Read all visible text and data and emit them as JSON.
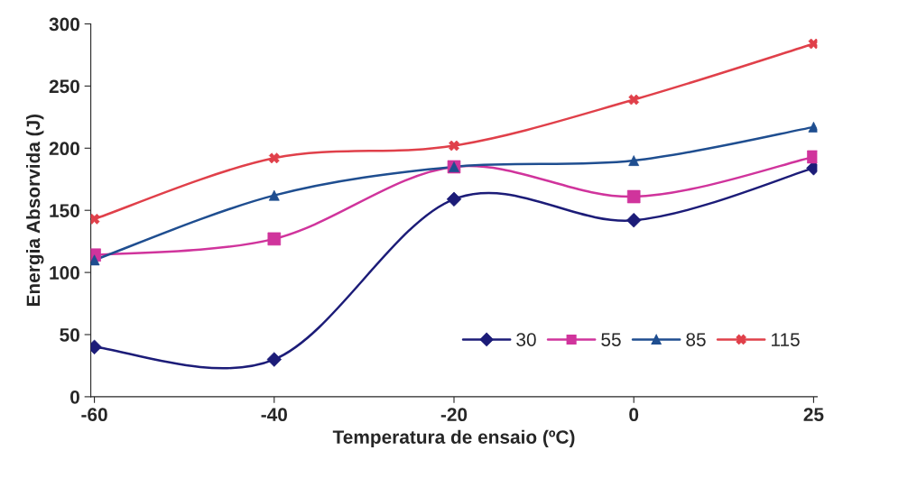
{
  "chart_data": {
    "type": "line",
    "xlabel": "Temperatura de ensaio (ºC)",
    "ylabel": "Energia Absorvida (J)",
    "categories": [
      "-60",
      "-40",
      "-20",
      "0",
      "25"
    ],
    "ylim": [
      0,
      300
    ],
    "yticks": [
      0,
      50,
      100,
      150,
      200,
      250,
      300
    ],
    "grid": false,
    "legend": "bottom right",
    "series": [
      {
        "name": "30",
        "color": "#1c1c78",
        "marker": "diamond",
        "values": [
          40,
          30,
          159,
          142,
          184
        ]
      },
      {
        "name": "55",
        "color": "#d0349c",
        "marker": "square",
        "values": [
          114,
          127,
          185,
          161,
          193
        ]
      },
      {
        "name": "85",
        "color": "#1f4e90",
        "marker": "triangle",
        "values": [
          110,
          162,
          185,
          190,
          217
        ]
      },
      {
        "name": "115",
        "color": "#e0404a",
        "marker": "cross",
        "values": [
          143,
          192,
          202,
          239,
          284
        ]
      }
    ]
  }
}
